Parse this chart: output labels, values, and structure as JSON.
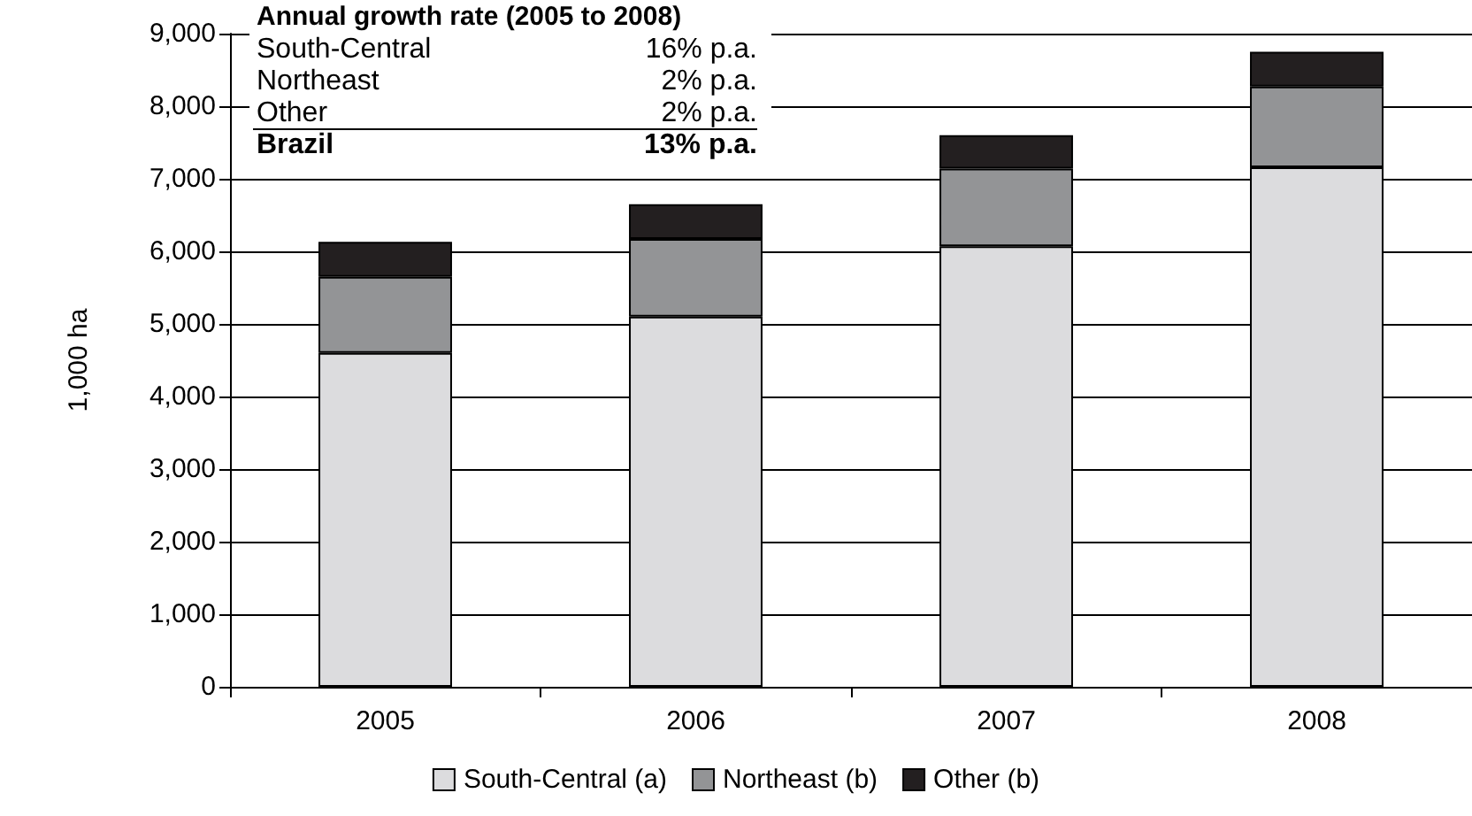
{
  "chart_data": {
    "type": "bar",
    "stacked": true,
    "ylabel": "1,000 ha",
    "categories": [
      "2005",
      "2006",
      "2007",
      "2008"
    ],
    "series": [
      {
        "name": "South-Central (a)",
        "color": "#dcdcde",
        "values": [
          4600,
          5100,
          6070,
          7160
        ]
      },
      {
        "name": "Northeast (b)",
        "color": "#939496",
        "values": [
          1050,
          1070,
          1070,
          1110
        ]
      },
      {
        "name": "Other (b)",
        "color": "#231f20",
        "values": [
          480,
          480,
          460,
          480
        ]
      }
    ],
    "ylim": [
      0,
      9000
    ],
    "yticks": [
      0,
      {
        "value": 1000,
        "label": "1,000"
      },
      {
        "value": 2000,
        "label": "2,000"
      },
      {
        "value": 3000,
        "label": "3,000"
      },
      {
        "value": 4000,
        "label": "4,000"
      },
      {
        "value": 5000,
        "label": "5,000"
      },
      {
        "value": 6000,
        "label": "6,000"
      },
      {
        "value": 7000,
        "label": "7,000"
      },
      {
        "value": 8000,
        "label": "8,000"
      },
      {
        "value": 9000,
        "label": "9,000"
      }
    ],
    "grid": "y",
    "legend": "bottom",
    "annotations": [
      "Annual growth rate (2005 to 2008)",
      "South-Central",
      "16% p.a.",
      "Northeast",
      "2% p.a.",
      "Other",
      "2% p.a.",
      "Brazil",
      "13% p.a."
    ]
  }
}
